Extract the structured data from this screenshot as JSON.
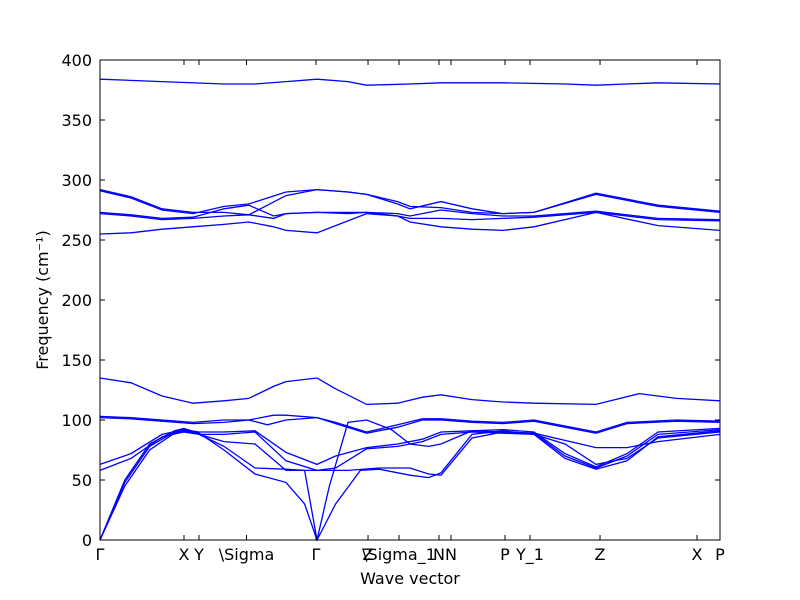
{
  "chart_data": {
    "type": "line",
    "title": "",
    "xlabel": "Wave vector",
    "ylabel": "Frequency (cm⁻¹)",
    "ylim": [
      0,
      400
    ],
    "yticks": [
      0,
      50,
      100,
      150,
      200,
      250,
      300,
      350,
      400
    ],
    "xlim": [
      0,
      1
    ],
    "grid": false,
    "line_color": "#0000ff",
    "high_symmetry_points": [
      {
        "label": "Γ",
        "x": 0.0
      },
      {
        "label": "X",
        "x": 0.1355
      },
      {
        "label": "Y",
        "x": 0.1597
      },
      {
        "label": "\\Sigma",
        "x": 0.2363
      },
      {
        "label": "Γ",
        "x": 0.3484
      },
      {
        "label": "Z",
        "x": 0.4323
      },
      {
        "label": "\\Sigma_1",
        "x": 0.4823
      },
      {
        "label": "N",
        "x": 0.5468
      },
      {
        "label": "N",
        "x": 0.5661
      },
      {
        "label": "P",
        "x": 0.6532
      },
      {
        "label": "Y_1",
        "x": 0.6935
      },
      {
        "label": "Z",
        "x": 0.8065
      },
      {
        "label": "X",
        "x": 0.9629
      },
      {
        "label": "P",
        "x": 1.0
      }
    ],
    "series": [
      {
        "values": [
          [
            0.0,
            384
          ],
          [
            0.1,
            382
          ],
          [
            0.2,
            380
          ],
          [
            0.25,
            380
          ],
          [
            0.3,
            382
          ],
          [
            0.35,
            384
          ],
          [
            0.4,
            382
          ],
          [
            0.43,
            379
          ],
          [
            0.5,
            380
          ],
          [
            0.55,
            381
          ],
          [
            0.65,
            381
          ],
          [
            0.75,
            380
          ],
          [
            0.8,
            379
          ],
          [
            0.9,
            381
          ],
          [
            1.0,
            380
          ]
        ]
      },
      {
        "values": [
          [
            0.0,
            292
          ],
          [
            0.05,
            286
          ],
          [
            0.1,
            276
          ],
          [
            0.15,
            273
          ],
          [
            0.2,
            273
          ],
          [
            0.24,
            271
          ],
          [
            0.3,
            287
          ],
          [
            0.35,
            292
          ],
          [
            0.4,
            290
          ],
          [
            0.43,
            288
          ],
          [
            0.48,
            282
          ],
          [
            0.5,
            278
          ],
          [
            0.55,
            277
          ],
          [
            0.6,
            273
          ],
          [
            0.65,
            272
          ],
          [
            0.7,
            273
          ],
          [
            0.8,
            288
          ],
          [
            0.9,
            278
          ],
          [
            1.0,
            273
          ]
        ]
      },
      {
        "values": [
          [
            0.0,
            291
          ],
          [
            0.05,
            285
          ],
          [
            0.1,
            275
          ],
          [
            0.15,
            272
          ],
          [
            0.2,
            278
          ],
          [
            0.24,
            280
          ],
          [
            0.3,
            290
          ],
          [
            0.35,
            292
          ],
          [
            0.4,
            290
          ],
          [
            0.43,
            288
          ],
          [
            0.48,
            280
          ],
          [
            0.5,
            276
          ],
          [
            0.55,
            282
          ],
          [
            0.6,
            276
          ],
          [
            0.65,
            272
          ],
          [
            0.7,
            273
          ],
          [
            0.8,
            289
          ],
          [
            0.9,
            279
          ],
          [
            1.0,
            274
          ]
        ]
      },
      {
        "values": [
          [
            0.0,
            273
          ],
          [
            0.05,
            271
          ],
          [
            0.1,
            268
          ],
          [
            0.15,
            269
          ],
          [
            0.2,
            276
          ],
          [
            0.24,
            279
          ],
          [
            0.28,
            270
          ],
          [
            0.3,
            272
          ],
          [
            0.35,
            273
          ],
          [
            0.4,
            273
          ],
          [
            0.43,
            273
          ],
          [
            0.48,
            272
          ],
          [
            0.5,
            270
          ],
          [
            0.55,
            275
          ],
          [
            0.6,
            272
          ],
          [
            0.65,
            270
          ],
          [
            0.7,
            270
          ],
          [
            0.8,
            274
          ],
          [
            0.9,
            268
          ],
          [
            1.0,
            267
          ]
        ]
      },
      {
        "values": [
          [
            0.0,
            272
          ],
          [
            0.05,
            270
          ],
          [
            0.1,
            267
          ],
          [
            0.15,
            268
          ],
          [
            0.2,
            270
          ],
          [
            0.24,
            271
          ],
          [
            0.28,
            268
          ],
          [
            0.3,
            272
          ],
          [
            0.35,
            273
          ],
          [
            0.4,
            272
          ],
          [
            0.43,
            273
          ],
          [
            0.48,
            270
          ],
          [
            0.5,
            268
          ],
          [
            0.55,
            268
          ],
          [
            0.6,
            267
          ],
          [
            0.65,
            268
          ],
          [
            0.7,
            269
          ],
          [
            0.8,
            273
          ],
          [
            0.9,
            267
          ],
          [
            1.0,
            266
          ]
        ]
      },
      {
        "values": [
          [
            0.0,
            255
          ],
          [
            0.05,
            256
          ],
          [
            0.1,
            259
          ],
          [
            0.15,
            261
          ],
          [
            0.2,
            263
          ],
          [
            0.24,
            265
          ],
          [
            0.28,
            261
          ],
          [
            0.3,
            258
          ],
          [
            0.35,
            256
          ],
          [
            0.38,
            262
          ],
          [
            0.43,
            272
          ],
          [
            0.48,
            270
          ],
          [
            0.5,
            265
          ],
          [
            0.55,
            261
          ],
          [
            0.6,
            259
          ],
          [
            0.65,
            258
          ],
          [
            0.7,
            261
          ],
          [
            0.8,
            273
          ],
          [
            0.9,
            262
          ],
          [
            1.0,
            258
          ]
        ]
      },
      {
        "values": [
          [
            0.0,
            135
          ],
          [
            0.05,
            131
          ],
          [
            0.1,
            120
          ],
          [
            0.15,
            114
          ],
          [
            0.2,
            116
          ],
          [
            0.24,
            118
          ],
          [
            0.28,
            128
          ],
          [
            0.3,
            132
          ],
          [
            0.35,
            135
          ],
          [
            0.38,
            126
          ],
          [
            0.43,
            113
          ],
          [
            0.48,
            114
          ],
          [
            0.52,
            119
          ],
          [
            0.55,
            121
          ],
          [
            0.6,
            117
          ],
          [
            0.65,
            115
          ],
          [
            0.7,
            114
          ],
          [
            0.8,
            113
          ],
          [
            0.87,
            122
          ],
          [
            0.93,
            118
          ],
          [
            1.0,
            116
          ]
        ]
      },
      {
        "values": [
          [
            0.0,
            103
          ],
          [
            0.05,
            102
          ],
          [
            0.1,
            100
          ],
          [
            0.15,
            98
          ],
          [
            0.2,
            100
          ],
          [
            0.24,
            100
          ],
          [
            0.28,
            104
          ],
          [
            0.3,
            104
          ],
          [
            0.35,
            102
          ],
          [
            0.38,
            98
          ],
          [
            0.43,
            90
          ],
          [
            0.48,
            96
          ],
          [
            0.52,
            101
          ],
          [
            0.55,
            101
          ],
          [
            0.6,
            99
          ],
          [
            0.65,
            98
          ],
          [
            0.7,
            100
          ],
          [
            0.8,
            90
          ],
          [
            0.85,
            98
          ],
          [
            0.93,
            100
          ],
          [
            1.0,
            99
          ]
        ]
      },
      {
        "values": [
          [
            0.0,
            102
          ],
          [
            0.05,
            101
          ],
          [
            0.1,
            99
          ],
          [
            0.15,
            97
          ],
          [
            0.2,
            98
          ],
          [
            0.24,
            100
          ],
          [
            0.27,
            96
          ],
          [
            0.3,
            100
          ],
          [
            0.35,
            102
          ],
          [
            0.38,
            97
          ],
          [
            0.43,
            89
          ],
          [
            0.48,
            94
          ],
          [
            0.52,
            100
          ],
          [
            0.55,
            100
          ],
          [
            0.6,
            98
          ],
          [
            0.65,
            97
          ],
          [
            0.7,
            99
          ],
          [
            0.8,
            89
          ],
          [
            0.85,
            97
          ],
          [
            0.93,
            99
          ],
          [
            1.0,
            98
          ]
        ]
      },
      {
        "values": [
          [
            0.0,
            63
          ],
          [
            0.05,
            72
          ],
          [
            0.1,
            88
          ],
          [
            0.135,
            92
          ],
          [
            0.16,
            90
          ],
          [
            0.2,
            90
          ],
          [
            0.25,
            91
          ],
          [
            0.3,
            73
          ],
          [
            0.35,
            63
          ],
          [
            0.38,
            70
          ],
          [
            0.43,
            77
          ],
          [
            0.48,
            80
          ],
          [
            0.52,
            84
          ],
          [
            0.55,
            90
          ],
          [
            0.6,
            91
          ],
          [
            0.65,
            90
          ],
          [
            0.7,
            89
          ],
          [
            0.75,
            83
          ],
          [
            0.8,
            77
          ],
          [
            0.85,
            77
          ],
          [
            0.9,
            82
          ],
          [
            1.0,
            88
          ]
        ]
      },
      {
        "values": [
          [
            0.0,
            58
          ],
          [
            0.05,
            68
          ],
          [
            0.1,
            86
          ],
          [
            0.135,
            90
          ],
          [
            0.16,
            88
          ],
          [
            0.2,
            88
          ],
          [
            0.25,
            90
          ],
          [
            0.3,
            66
          ],
          [
            0.35,
            58
          ],
          [
            0.38,
            60
          ],
          [
            0.43,
            76
          ],
          [
            0.48,
            78
          ],
          [
            0.52,
            82
          ],
          [
            0.55,
            88
          ],
          [
            0.6,
            90
          ],
          [
            0.65,
            89
          ],
          [
            0.7,
            88
          ],
          [
            0.75,
            80
          ],
          [
            0.8,
            63
          ],
          [
            0.85,
            68
          ],
          [
            0.9,
            85
          ],
          [
            1.0,
            90
          ]
        ]
      },
      {
        "values": [
          [
            0.0,
            0
          ],
          [
            0.04,
            45
          ],
          [
            0.08,
            75
          ],
          [
            0.12,
            89
          ],
          [
            0.135,
            91
          ],
          [
            0.16,
            88
          ],
          [
            0.2,
            82
          ],
          [
            0.25,
            80
          ],
          [
            0.3,
            58
          ],
          [
            0.33,
            58
          ],
          [
            0.35,
            58
          ],
          [
            0.4,
            58
          ],
          [
            0.45,
            60
          ],
          [
            0.5,
            60
          ],
          [
            0.53,
            55
          ],
          [
            0.55,
            54
          ],
          [
            0.6,
            85
          ],
          [
            0.65,
            90
          ],
          [
            0.7,
            89
          ],
          [
            0.75,
            70
          ],
          [
            0.8,
            60
          ],
          [
            0.85,
            70
          ],
          [
            0.9,
            88
          ],
          [
            1.0,
            92
          ]
        ]
      },
      {
        "values": [
          [
            0.0,
            0
          ],
          [
            0.04,
            50
          ],
          [
            0.08,
            80
          ],
          [
            0.12,
            91
          ],
          [
            0.135,
            93
          ],
          [
            0.16,
            89
          ],
          [
            0.2,
            75
          ],
          [
            0.25,
            55
          ],
          [
            0.3,
            48
          ],
          [
            0.33,
            30
          ],
          [
            0.35,
            0
          ],
          [
            0.38,
            30
          ],
          [
            0.42,
            58
          ],
          [
            0.45,
            59
          ],
          [
            0.5,
            54
          ],
          [
            0.53,
            52
          ],
          [
            0.55,
            56
          ],
          [
            0.6,
            88
          ],
          [
            0.65,
            91
          ],
          [
            0.7,
            88
          ],
          [
            0.75,
            68
          ],
          [
            0.8,
            59
          ],
          [
            0.85,
            66
          ],
          [
            0.9,
            86
          ],
          [
            1.0,
            91
          ]
        ]
      },
      {
        "values": [
          [
            0.0,
            0
          ],
          [
            0.04,
            48
          ],
          [
            0.08,
            78
          ],
          [
            0.12,
            90
          ],
          [
            0.135,
            92
          ],
          [
            0.16,
            88
          ],
          [
            0.2,
            78
          ],
          [
            0.25,
            60
          ],
          [
            0.3,
            59
          ],
          [
            0.33,
            58
          ],
          [
            0.35,
            0
          ],
          [
            0.37,
            45
          ],
          [
            0.4,
            98
          ],
          [
            0.43,
            100
          ],
          [
            0.47,
            92
          ],
          [
            0.5,
            80
          ],
          [
            0.53,
            78
          ],
          [
            0.55,
            80
          ],
          [
            0.6,
            91
          ],
          [
            0.65,
            92
          ],
          [
            0.7,
            90
          ],
          [
            0.75,
            72
          ],
          [
            0.8,
            61
          ],
          [
            0.85,
            72
          ],
          [
            0.9,
            90
          ],
          [
            1.0,
            93
          ]
        ]
      }
    ]
  }
}
